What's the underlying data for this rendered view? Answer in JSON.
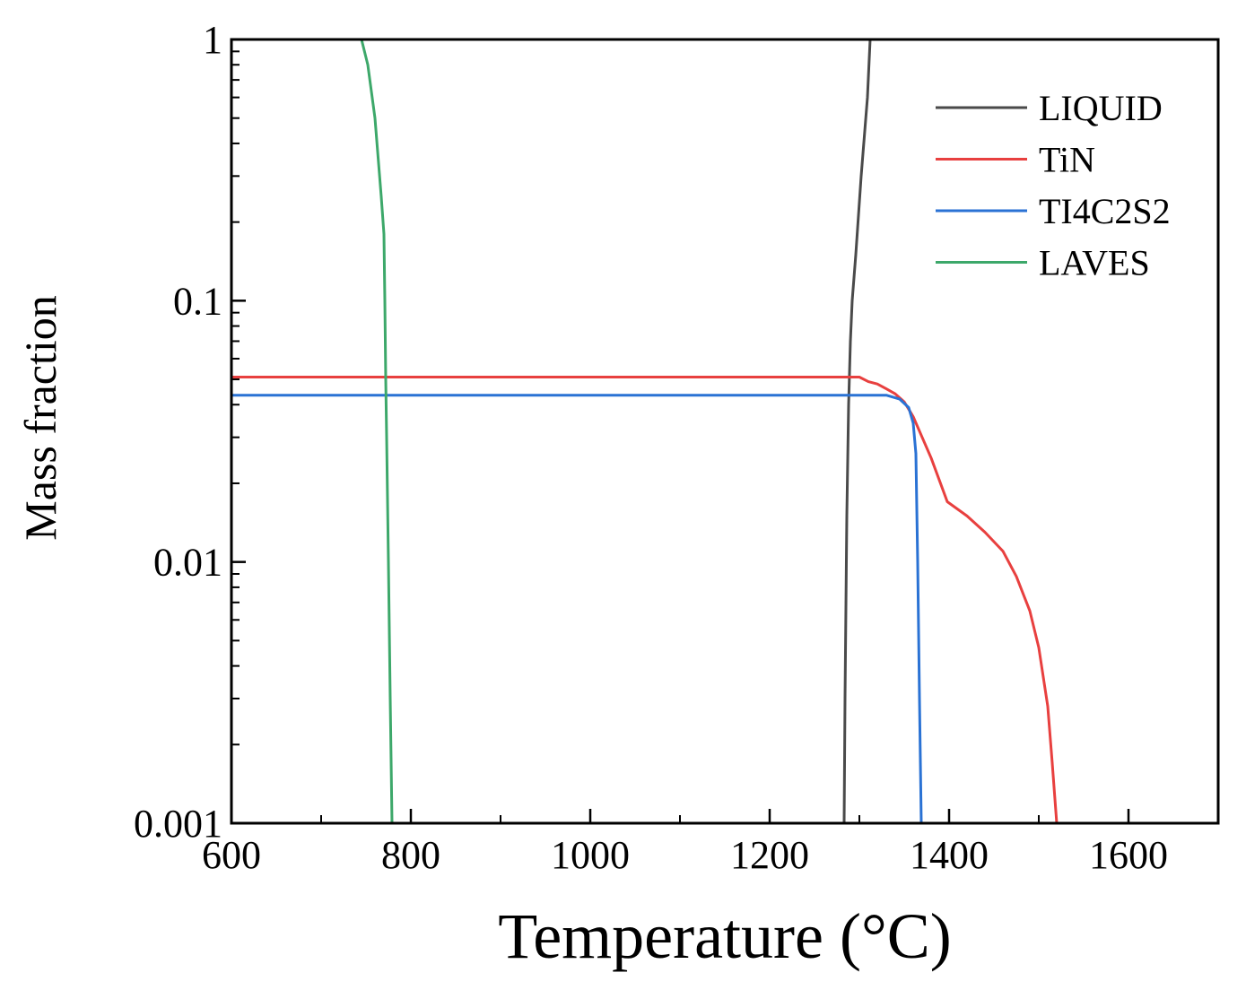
{
  "chart_data": {
    "type": "line",
    "title": "",
    "xlabel": "Temperature (°C)",
    "ylabel": "Mass fraction",
    "xlim": [
      600,
      1700
    ],
    "ylim": [
      0.001,
      1
    ],
    "yscale": "log",
    "x_ticks": [
      600,
      800,
      1000,
      1200,
      1400,
      1600
    ],
    "x_tick_labels": [
      "600",
      "800",
      "1000",
      "1200",
      "1400",
      "1600"
    ],
    "x_minor_ticks": [
      700,
      900,
      1100,
      1300,
      1500,
      1700
    ],
    "y_ticks": [
      0.001,
      0.01,
      0.1,
      1
    ],
    "y_tick_labels": [
      "0.001",
      "0.01",
      "0.1",
      "1"
    ],
    "grid": false,
    "legend_position": "top-right",
    "series": [
      {
        "name": "LIQUID",
        "color": "#4a4a4a",
        "points": [
          [
            1283,
            0.001
          ],
          [
            1284,
            0.003
          ],
          [
            1286,
            0.015
          ],
          [
            1288,
            0.04
          ],
          [
            1290,
            0.07
          ],
          [
            1292,
            0.1
          ],
          [
            1296,
            0.15
          ],
          [
            1302,
            0.3
          ],
          [
            1309,
            0.6
          ],
          [
            1312,
            1.0
          ]
        ]
      },
      {
        "name": "TiN",
        "color": "#e8403f",
        "points": [
          [
            600,
            0.051
          ],
          [
            1300,
            0.051
          ],
          [
            1310,
            0.049
          ],
          [
            1320,
            0.048
          ],
          [
            1330,
            0.046
          ],
          [
            1340,
            0.044
          ],
          [
            1350,
            0.041
          ],
          [
            1360,
            0.036
          ],
          [
            1370,
            0.03
          ],
          [
            1380,
            0.025
          ],
          [
            1398,
            0.017
          ],
          [
            1420,
            0.015
          ],
          [
            1440,
            0.013
          ],
          [
            1460,
            0.011
          ],
          [
            1475,
            0.0088
          ],
          [
            1490,
            0.0065
          ],
          [
            1500,
            0.0047
          ],
          [
            1510,
            0.0028
          ],
          [
            1515,
            0.0017
          ],
          [
            1520,
            0.001
          ]
        ]
      },
      {
        "name": "TI4C2S2",
        "color": "#2a72d4",
        "points": [
          [
            600,
            0.0435
          ],
          [
            1330,
            0.0435
          ],
          [
            1345,
            0.042
          ],
          [
            1355,
            0.039
          ],
          [
            1360,
            0.034
          ],
          [
            1363,
            0.026
          ],
          [
            1365,
            0.01
          ],
          [
            1367,
            0.003
          ],
          [
            1369,
            0.001
          ]
        ]
      },
      {
        "name": "LAVES",
        "color": "#3da86a",
        "points": [
          [
            745,
            1.0
          ],
          [
            752,
            0.8
          ],
          [
            760,
            0.5
          ],
          [
            767,
            0.25
          ],
          [
            770,
            0.18
          ],
          [
            771,
            0.1
          ],
          [
            772,
            0.05
          ],
          [
            773,
            0.03
          ],
          [
            775,
            0.01
          ],
          [
            777,
            0.003
          ],
          [
            779,
            0.001
          ]
        ]
      }
    ]
  }
}
